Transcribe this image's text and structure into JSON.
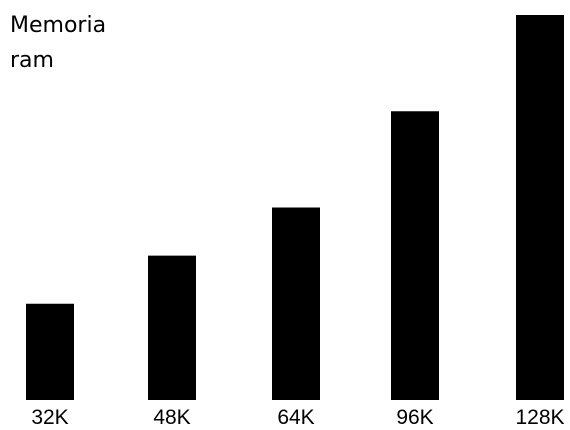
{
  "chart_data": {
    "type": "bar",
    "title_lines": [
      "Memoria",
      "ram"
    ],
    "categories": [
      "32K",
      "48K",
      "64K",
      "96K",
      "128K"
    ],
    "values": [
      32,
      48,
      64,
      96,
      128
    ],
    "xlabel": "",
    "ylabel": "",
    "ylim": [
      0,
      128
    ],
    "grid": false,
    "legend": "none",
    "bar_color": "#000000"
  }
}
